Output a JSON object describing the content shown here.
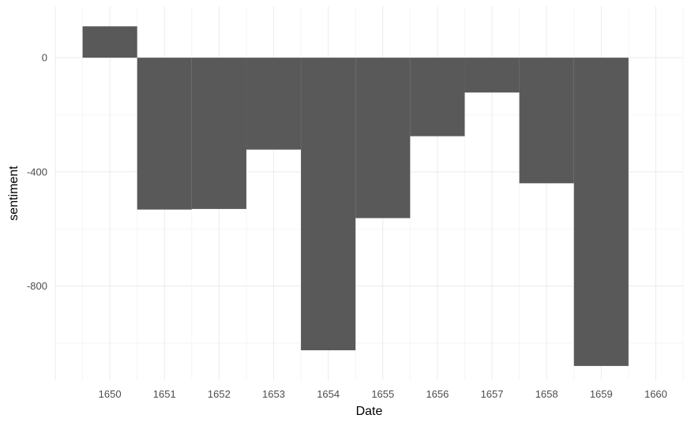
{
  "chart_data": {
    "type": "bar",
    "title": "",
    "xlabel": "Date",
    "ylabel": "sentiment",
    "categories": [
      "1650",
      "1651",
      "1652",
      "1653",
      "1654",
      "1655",
      "1656",
      "1657",
      "1658",
      "1659"
    ],
    "values": [
      110,
      -532,
      -530,
      -322,
      -1025,
      -562,
      -275,
      -122,
      -440,
      -1080
    ],
    "x_ticks": [
      "1650",
      "1651",
      "1652",
      "1653",
      "1654",
      "1655",
      "1656",
      "1657",
      "1658",
      "1659",
      "1660"
    ],
    "y_ticks": [
      0,
      -400,
      -800
    ],
    "y_tick_labels": [
      "0",
      "-400",
      "-800"
    ],
    "ylim": [
      -1130,
      180
    ],
    "xlim": [
      1649,
      1660.5
    ],
    "bar_color": "#595959",
    "grid": true,
    "legend": "none"
  }
}
